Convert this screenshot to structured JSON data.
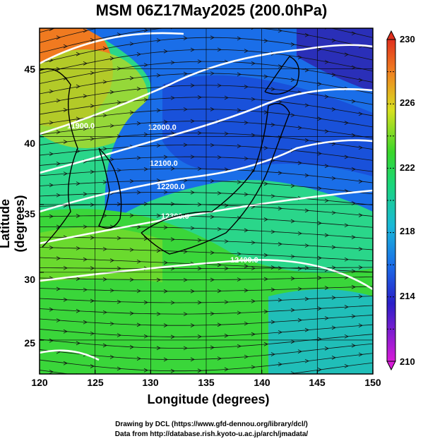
{
  "title": "MSM 06Z17May2025 (200.0hPa)",
  "xlabel": "Longitude (degrees)",
  "ylabel": "Latitude  (degrees)",
  "x_ticks": [
    "120",
    "125",
    "130",
    "135",
    "140",
    "145",
    "150"
  ],
  "y_ticks": [
    "25",
    "30",
    "35",
    "40",
    "45"
  ],
  "colorbar_ticks": [
    "230",
    "226",
    "222",
    "218",
    "214",
    "210"
  ],
  "contour_labels": [
    "11900.0",
    "12000.0",
    "12100.0",
    "12200.0",
    "12300.0",
    "12400.0"
  ],
  "credits": [
    "Drawing by DCL (https://www.gfd-dennou.org/library/dcl/)",
    "Data from http://database.rish.kyoto-u.ac.jp/arch/jmadata/"
  ],
  "colors": {
    "warm": "#e0301e",
    "mid": "#7fdc2a",
    "cool": "#1a3fe0",
    "contour": "#ffffff",
    "vector": "#111111"
  },
  "chart_data": {
    "type": "heatmap",
    "xlim": [
      120,
      150
    ],
    "ylim": [
      22.5,
      48
    ],
    "colorbar_range": [
      210,
      230
    ],
    "contour_levels": [
      11900,
      12000,
      12100,
      12200,
      12300,
      12400
    ]
  }
}
